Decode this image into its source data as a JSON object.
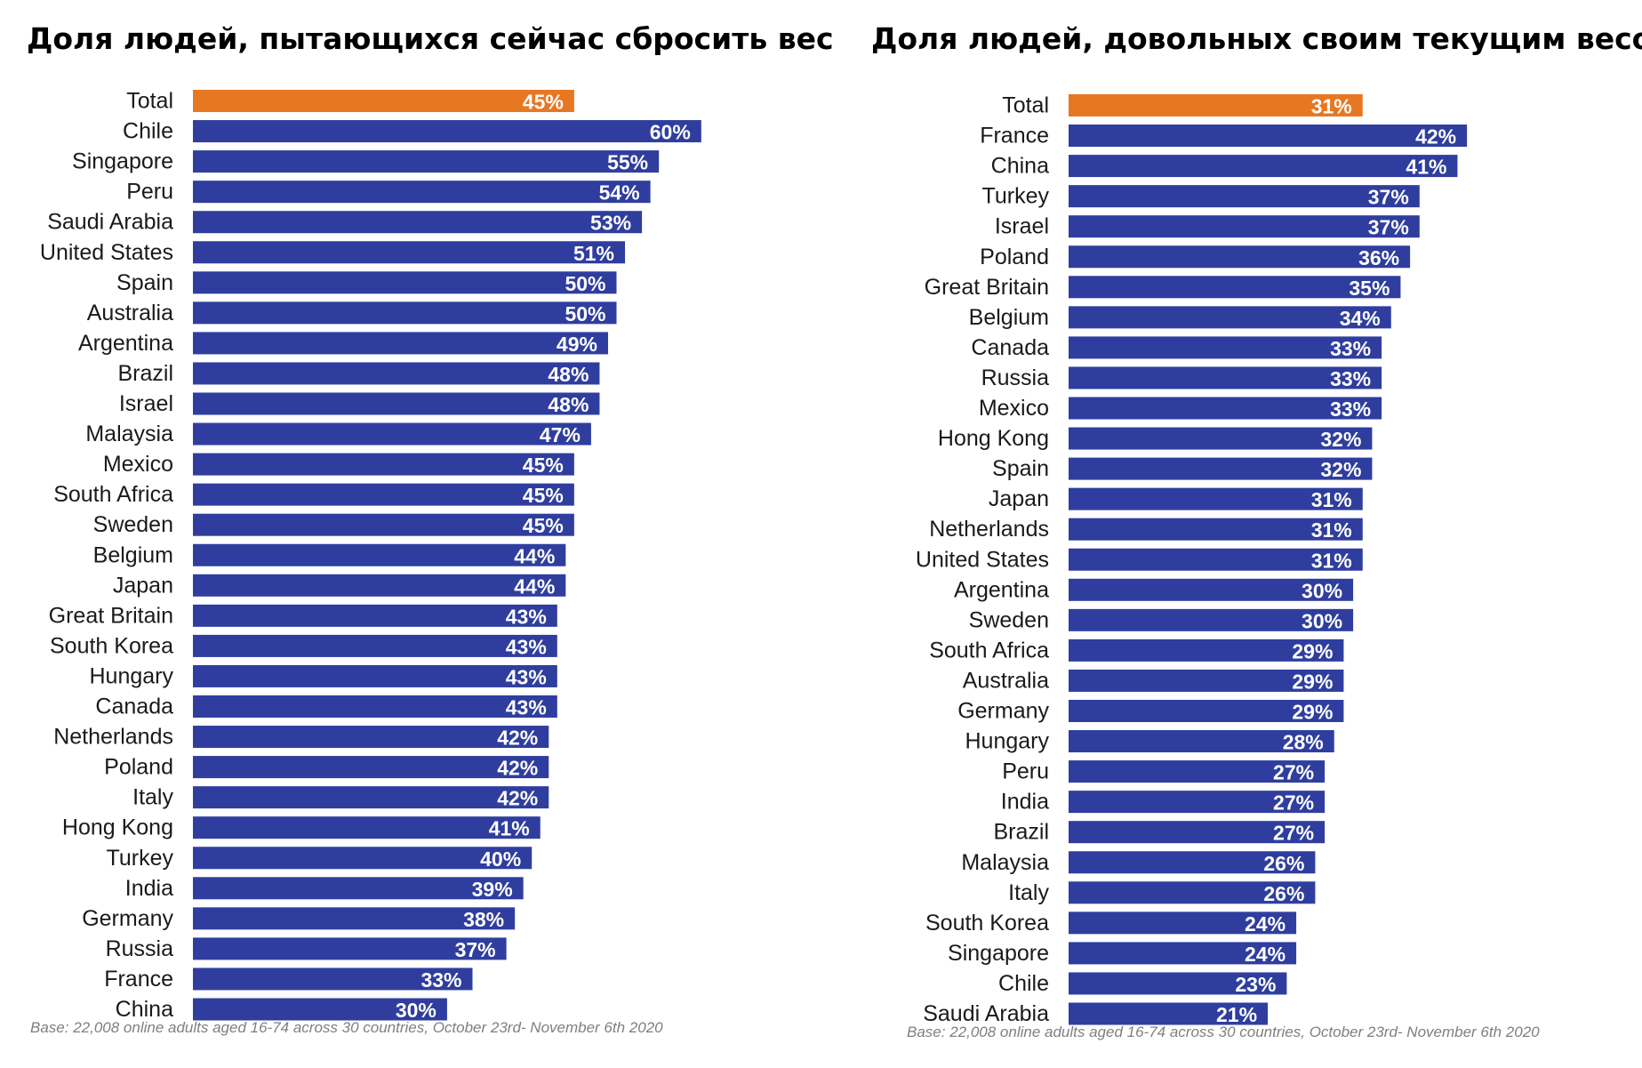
{
  "chart_data": [
    {
      "type": "bar",
      "orientation": "horizontal",
      "title": "Доля людей, пытающихся сейчас сбросить вес",
      "note": "Base: 22,008 online adults aged 16-74 across 30 countries, October 23rd- November 6th 2020",
      "categories": [
        "Total",
        "Chile",
        "Singapore",
        "Peru",
        "Saudi Arabia",
        "United States",
        "Spain",
        "Australia",
        "Argentina",
        "Brazil",
        "Israel",
        "Malaysia",
        "Mexico",
        "South Africa",
        "Sweden",
        "Belgium",
        "Japan",
        "Great Britain",
        "South Korea",
        "Hungary",
        "Canada",
        "Netherlands",
        "Poland",
        "Italy",
        "Hong Kong",
        "Turkey",
        "India",
        "Germany",
        "Russia",
        "France",
        "China"
      ],
      "values": [
        45,
        60,
        55,
        54,
        53,
        51,
        50,
        50,
        49,
        48,
        48,
        47,
        45,
        45,
        45,
        44,
        44,
        43,
        43,
        43,
        43,
        42,
        42,
        42,
        41,
        40,
        39,
        38,
        37,
        33,
        30
      ],
      "value_labels": [
        "45%",
        "60%",
        "55%",
        "54%",
        "53%",
        "51%",
        "50%",
        "50%",
        "49%",
        "48%",
        "48%",
        "47%",
        "45%",
        "45%",
        "45%",
        "44%",
        "44%",
        "43%",
        "43%",
        "43%",
        "43%",
        "42%",
        "42%",
        "42%",
        "41%",
        "40%",
        "39%",
        "38%",
        "37%",
        "33%",
        "30%"
      ],
      "unit": "%",
      "highlight_category": "Total",
      "colors": {
        "highlight": "#E87722",
        "bar": "#2F3E9E"
      },
      "grid": false,
      "legend": "none"
    },
    {
      "type": "bar",
      "orientation": "horizontal",
      "title": "Доля людей, довольных своим текущим весом",
      "note": "Base: 22,008 online adults aged 16-74 across 30 countries, October 23rd- November 6th 2020",
      "categories": [
        "Total",
        "France",
        "China",
        "Turkey",
        "Israel",
        "Poland",
        "Great Britain",
        "Belgium",
        "Canada",
        "Russia",
        "Mexico",
        "Hong Kong",
        "Spain",
        "Japan",
        "Netherlands",
        "United States",
        "Argentina",
        "Sweden",
        "South Africa",
        "Australia",
        "Germany",
        "Hungary",
        "Peru",
        "India",
        "Brazil",
        "Malaysia",
        "Italy",
        "South Korea",
        "Singapore",
        "Chile",
        "Saudi Arabia"
      ],
      "values": [
        31,
        42,
        41,
        37,
        37,
        36,
        35,
        34,
        33,
        33,
        33,
        32,
        32,
        31,
        31,
        31,
        30,
        30,
        29,
        29,
        29,
        28,
        27,
        27,
        27,
        26,
        26,
        24,
        24,
        23,
        21
      ],
      "value_labels": [
        "31%",
        "42%",
        "41%",
        "37%",
        "37%",
        "36%",
        "35%",
        "34%",
        "33%",
        "33%",
        "33%",
        "32%",
        "32%",
        "31%",
        "31%",
        "31%",
        "30%",
        "30%",
        "29%",
        "29%",
        "29%",
        "28%",
        "27%",
        "27%",
        "27%",
        "26%",
        "26%",
        "24%",
        "24%",
        "23%",
        "21%"
      ],
      "unit": "%",
      "highlight_category": "Total",
      "colors": {
        "highlight": "#E87722",
        "bar": "#2F3E9E"
      },
      "grid": false,
      "legend": "none"
    }
  ]
}
